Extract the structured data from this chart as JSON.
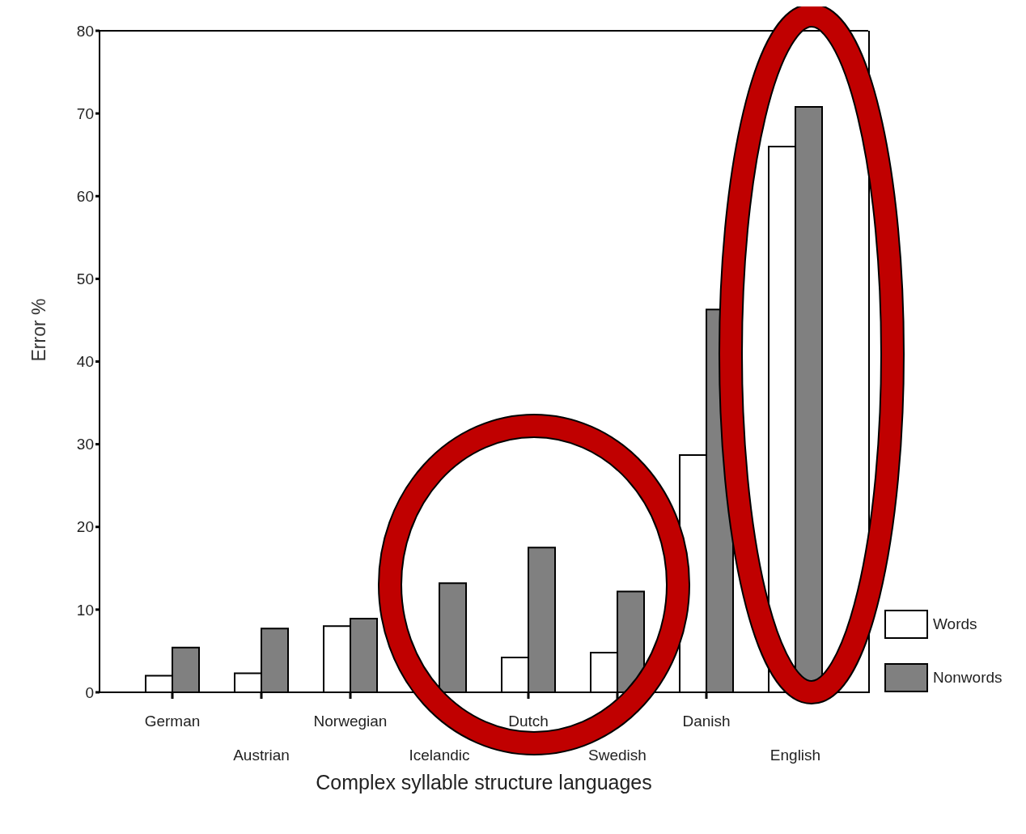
{
  "chart_data": {
    "type": "bar",
    "xlabel": "Complex syllable structure languages",
    "ylabel": "Error %",
    "categories": [
      "German",
      "Austrian",
      "Norwegian",
      "Icelandic",
      "Dutch",
      "Swedish",
      "Danish",
      "English"
    ],
    "series": [
      {
        "name": "Words",
        "color": "#ffffff",
        "values": [
          2,
          2.3,
          8,
          null,
          4.2,
          4.8,
          28.7,
          66
        ]
      },
      {
        "name": "Nonwords",
        "color": "#808080",
        "values": [
          5.4,
          7.7,
          8.9,
          13.2,
          17.5,
          12.2,
          46.3,
          70.8
        ]
      }
    ],
    "ylim": [
      0,
      80
    ],
    "yticks": [
      0,
      10,
      20,
      30,
      40,
      50,
      60,
      70,
      80
    ],
    "legend": "bottom right"
  }
}
